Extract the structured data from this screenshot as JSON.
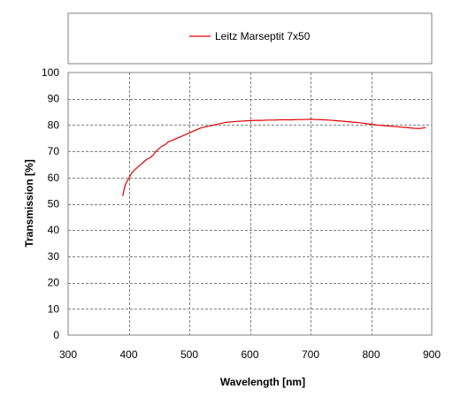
{
  "chart_data": {
    "type": "line",
    "title": "",
    "xlabel": "Wavelength [nm]",
    "ylabel": "Transmission [%]",
    "xlim": [
      300,
      900
    ],
    "ylim": [
      0,
      100
    ],
    "xticks": [
      300,
      400,
      500,
      600,
      700,
      800,
      900
    ],
    "yticks": [
      0,
      10,
      20,
      30,
      40,
      50,
      60,
      70,
      80,
      90,
      100
    ],
    "grid": true,
    "legend": "top",
    "series": [
      {
        "name": "Leitz Marseptit 7x50",
        "color": "#e00000",
        "x": [
          390,
          392,
          394,
          396,
          398,
          400,
          403,
          406,
          410,
          415,
          420,
          425,
          430,
          435,
          440,
          445,
          450,
          455,
          460,
          465,
          470,
          480,
          490,
          500,
          510,
          520,
          530,
          540,
          550,
          560,
          570,
          580,
          590,
          600,
          610,
          620,
          630,
          640,
          650,
          660,
          670,
          680,
          690,
          700,
          710,
          720,
          730,
          740,
          750,
          760,
          770,
          780,
          790,
          800,
          810,
          820,
          830,
          840,
          850,
          860,
          870,
          880,
          890
        ],
        "y": [
          53,
          55,
          57,
          58,
          59,
          59.5,
          61,
          62,
          63,
          64,
          65,
          66,
          67,
          67.5,
          68.5,
          70,
          71,
          72,
          72.5,
          73.5,
          74,
          75,
          76,
          77,
          78,
          79,
          79.5,
          80,
          80.5,
          81,
          81.2,
          81.4,
          81.5,
          81.7,
          81.8,
          81.8,
          81.9,
          81.9,
          82,
          82,
          82,
          82.1,
          82.1,
          82.2,
          82.1,
          82,
          81.9,
          81.7,
          81.5,
          81.3,
          81.1,
          80.9,
          80.6,
          80.3,
          80,
          79.8,
          79.6,
          79.4,
          79.2,
          79,
          78.8,
          78.7,
          79
        ]
      }
    ]
  }
}
